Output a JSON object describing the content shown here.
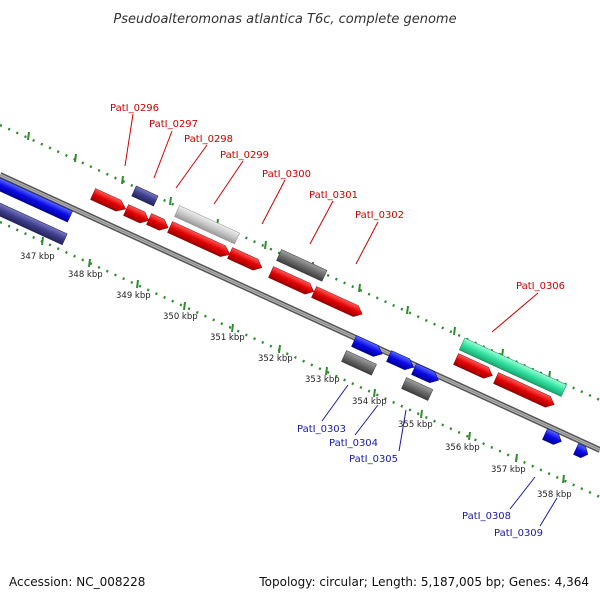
{
  "title": "Pseudoalteromonas atlantica T6c, complete genome",
  "footer": {
    "accession": "Accession: NC_008228",
    "topology": "Topology: circular; Length: 5,187,005 bp; Genes: 4,364"
  },
  "ruler_labels": [
    "347 kbp",
    "348 kbp",
    "349 kbp",
    "350 kbp",
    "351 kbp",
    "352 kbp",
    "353 kbp",
    "354 kbp",
    "355 kbp",
    "356 kbp",
    "357 kbp",
    "358 kbp"
  ],
  "gene_labels_top": [
    "PatI_0296",
    "PatI_0297",
    "PatI_0298",
    "PatI_0299",
    "PatI_0300",
    "PatI_0301",
    "PatI_0302",
    "PatI_0306"
  ],
  "gene_labels_bottom": [
    "PatI_0303",
    "PatI_0304",
    "PatI_0305",
    "PatI_0308",
    "PatI_0309"
  ],
  "colors": {
    "red": "#e00000",
    "blue": "#0a0ae6",
    "navy": "#3d3d8c",
    "grey": "#6b6b6b",
    "lightgrey": "#c8c8c8",
    "teal": "#33e0a0",
    "backbone": "#8a8a8a",
    "dots": "#2e8b2e"
  }
}
